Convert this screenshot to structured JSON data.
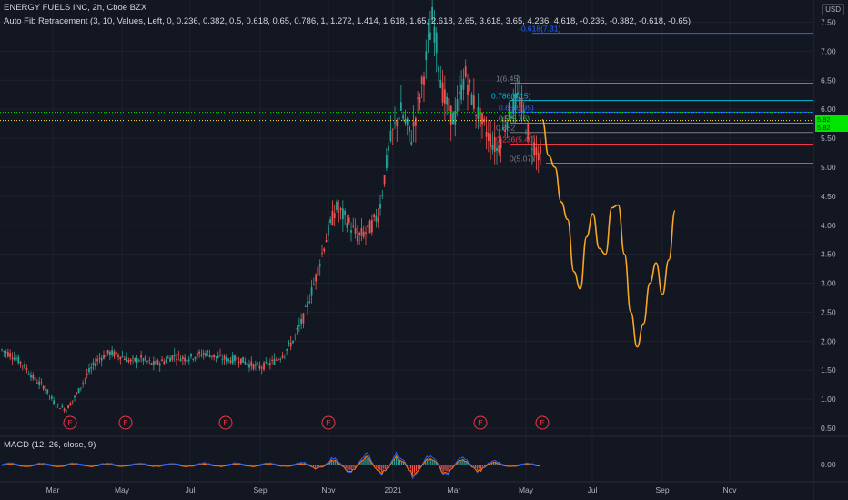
{
  "header": {
    "symbol_line": "ENERGY FUELS INC, 2h, Cboe BZX",
    "fib_line": "Auto Fib Retracement (3, 10, Values, Left, 0, 0.236, 0.382, 0.5, 0.618, 0.65, 0.786, 1, 1.272, 1.414, 1.618, 1.65, 2.618, 2.65, 3.618, 3.65, 4.236, 4.618, -0.236, -0.382, -0.618, -0.65)",
    "macd_line": "MACD (12, 26, close, 9)",
    "currency": "USD"
  },
  "price_tags": {
    "upper": "5.82",
    "lower": "5.82"
  },
  "earnings_marker": "E",
  "colors": {
    "background": "#131722",
    "up": "#26a69a",
    "down": "#ef5350",
    "projection": "#f5a623",
    "price_line": "#ffeb3b",
    "tag": "#00e600",
    "macd": "#2962ff",
    "signal": "#ff6d00"
  },
  "chart_data": {
    "type": "line",
    "x_axis_labels": [
      "Mar",
      "May",
      "Jul",
      "Sep",
      "Nov",
      "2021",
      "Mar",
      "May",
      "Jul",
      "Sep",
      "Nov"
    ],
    "y_axis_labels": [
      "7.50",
      "7.00",
      "6.50",
      "6.00",
      "5.50",
      "5.00",
      "4.50",
      "4.00",
      "3.50",
      "3.00",
      "2.50",
      "2.00",
      "1.50",
      "1.00",
      "0.50"
    ],
    "macd_axis_label": "0.00",
    "ylim": [
      0.45,
      7.85
    ],
    "series": [
      {
        "values": [
          1.85,
          1.75,
          1.6,
          1.35,
          1.2,
          0.9,
          0.82,
          1.1,
          1.45,
          1.7,
          1.8,
          1.75,
          1.65,
          1.7,
          1.6,
          1.65,
          1.75,
          1.7,
          1.75,
          1.8,
          1.72,
          1.68,
          1.7,
          1.6,
          1.55,
          1.62,
          1.75,
          2.0,
          2.4,
          3.0,
          3.7,
          4.3,
          4.1,
          3.8,
          3.9,
          4.2,
          5.4,
          6.0,
          5.5,
          6.4,
          7.6,
          6.2,
          5.8,
          6.6,
          6.0,
          5.6,
          5.3,
          5.9,
          6.2,
          5.5,
          5.2
        ]
      },
      {
        "values": [
          5.82,
          5.2,
          5.0,
          4.4,
          4.1,
          3.2,
          2.9,
          3.8,
          4.2,
          3.6,
          3.5,
          4.3,
          4.35,
          3.5,
          2.5,
          1.9,
          2.3,
          3.0,
          3.35,
          2.8,
          3.4,
          4.25
        ]
      }
    ],
    "fib_levels": [
      {
        "label": "-0.618(7.31)",
        "value": 7.31,
        "color": "#2962ff"
      },
      {
        "label": "1(6.45)",
        "value": 6.45,
        "color": "#787b86"
      },
      {
        "label": "0.786(6.15)",
        "value": 6.15,
        "color": "#00bcd4"
      },
      {
        "label": "0.65(5.95)",
        "value": 5.95,
        "color": "#2962ff"
      },
      {
        "label": "0.5(5.76)",
        "value": 5.76,
        "color": "#4caf50"
      },
      {
        "label": "0.382",
        "value": 5.6,
        "color": "#787b86"
      },
      {
        "label": "0.236(5.40)",
        "value": 5.4,
        "color": "#f23645"
      },
      {
        "label": "0(5.07)",
        "value": 5.07,
        "color": "#787b86"
      }
    ],
    "current_price": 5.82,
    "earnings": [
      "E",
      "E",
      "E",
      "E",
      "E",
      "E"
    ]
  }
}
